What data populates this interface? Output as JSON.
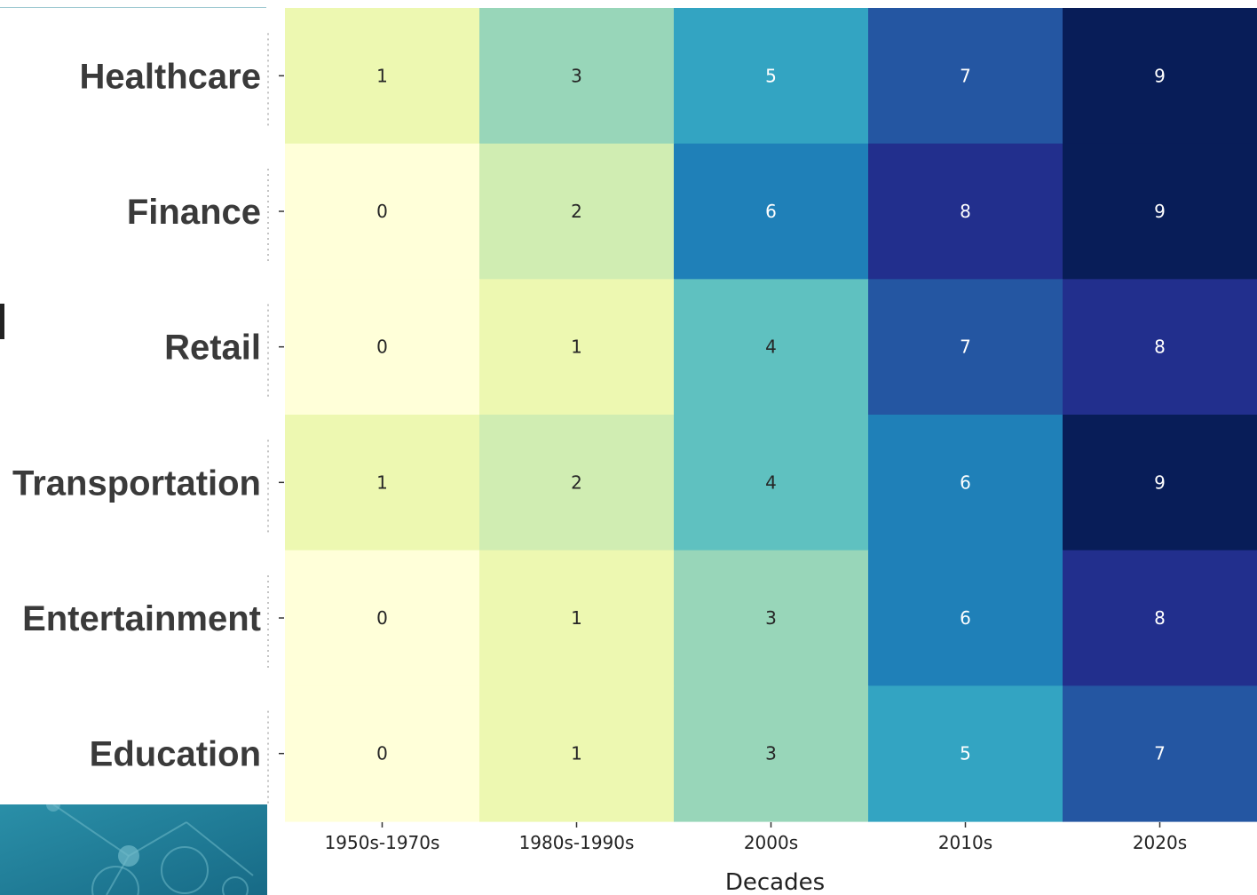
{
  "chart_data": {
    "type": "heatmap",
    "title": "",
    "xlabel": "Decades",
    "ylabel": "",
    "colormap": "YlGnBu",
    "value_range": [
      0,
      9
    ],
    "grid": false,
    "x_categories": [
      "1950s-1970s",
      "1980s-1990s",
      "2000s",
      "2010s",
      "2020s"
    ],
    "y_categories": [
      "Healthcare",
      "Finance",
      "Retail",
      "Transportation",
      "Entertainment",
      "Education"
    ],
    "values": [
      [
        1,
        3,
        5,
        7,
        9
      ],
      [
        0,
        2,
        6,
        8,
        9
      ],
      [
        0,
        1,
        4,
        7,
        8
      ],
      [
        1,
        2,
        4,
        6,
        9
      ],
      [
        0,
        1,
        3,
        6,
        8
      ],
      [
        0,
        1,
        3,
        5,
        7
      ]
    ]
  }
}
